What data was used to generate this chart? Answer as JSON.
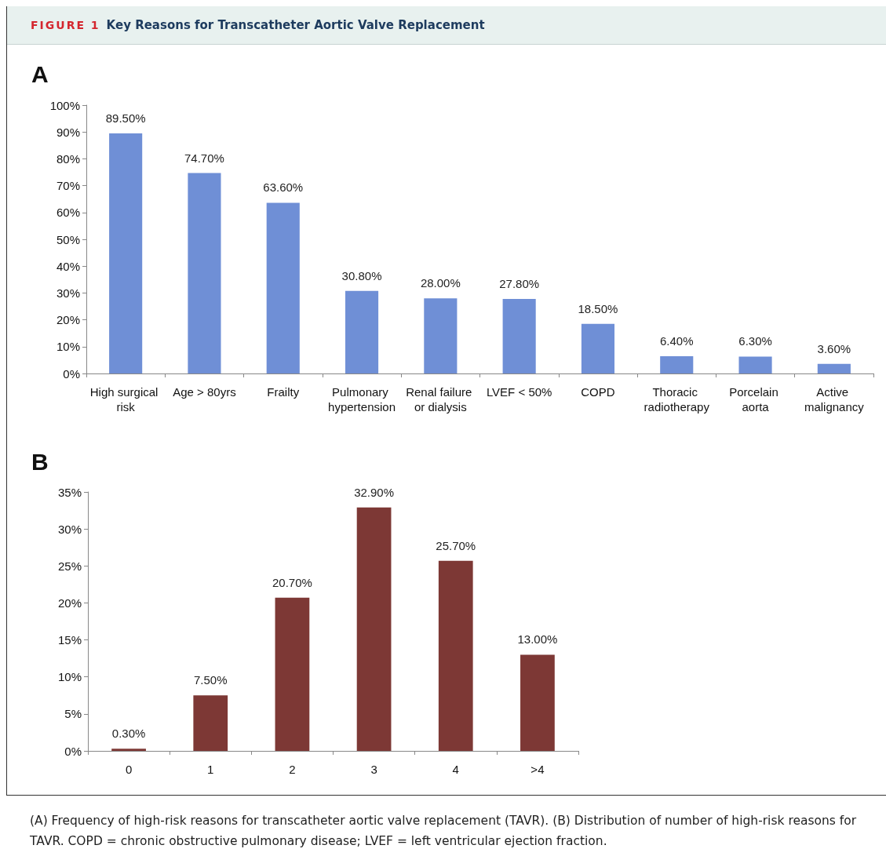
{
  "chart_data": [
    {
      "type": "bar",
      "title": "A",
      "annotations": [
        "FIGURE 1",
        "Key Reasons for Transcatheter Aortic Valve Replacement"
      ],
      "categories": [
        "High surgical risk",
        "Age > 80yrs",
        "Frailty",
        "Pulmonary hypertension",
        "Renal failure or dialysis",
        "LVEF < 50%",
        "COPD",
        "Thoracic radiotherapy",
        "Porcelain aorta",
        "Active malignancy"
      ],
      "values": [
        89.5,
        74.7,
        63.6,
        30.8,
        28.0,
        27.8,
        18.5,
        6.4,
        6.3,
        3.6
      ],
      "value_labels": [
        "89.50%",
        "74.70%",
        "63.60%",
        "30.80%",
        "28.00%",
        "27.80%",
        "18.50%",
        "6.40%",
        "6.30%",
        "3.60%"
      ],
      "color": "#6f8fd6",
      "ylim": [
        0,
        100
      ],
      "yticks": [
        {
          "value": 0,
          "label": "0%"
        },
        {
          "value": 10,
          "label": "10%"
        },
        {
          "value": 20,
          "label": "20%"
        },
        {
          "value": 30,
          "label": "30%"
        },
        {
          "value": 40,
          "label": "40%"
        },
        {
          "value": 50,
          "label": "50%"
        },
        {
          "value": 60,
          "label": "60%"
        },
        {
          "value": 70,
          "label": "70%"
        },
        {
          "value": 80,
          "label": "80%"
        },
        {
          "value": 90,
          "label": "90%"
        },
        {
          "value": 100,
          "label": "100%"
        }
      ],
      "grid": false
    },
    {
      "type": "bar",
      "title": "B",
      "annotations": [
        "(A) Frequency of high-risk reasons for transcatheter aortic valve replacement (TAVR). (B) Distribution of number of high-risk reasons for TAVR. COPD = chronic obstructive pulmonary disease; LVEF = left ventricular ejection fraction."
      ],
      "categories": [
        "0",
        "1",
        "2",
        "3",
        "4",
        ">4"
      ],
      "values": [
        0.3,
        7.5,
        20.7,
        32.9,
        25.7,
        13.0
      ],
      "value_labels": [
        "0.30%",
        "7.50%",
        "20.70%",
        "32.90%",
        "25.70%",
        "13.00%"
      ],
      "color": "#7d3835",
      "ylim": [
        0,
        35
      ],
      "yticks": [
        {
          "value": 0,
          "label": "0%"
        },
        {
          "value": 5,
          "label": "5%"
        },
        {
          "value": 10,
          "label": "10%"
        },
        {
          "value": 15,
          "label": "15%"
        },
        {
          "value": 20,
          "label": "20%"
        },
        {
          "value": 25,
          "label": "25%"
        },
        {
          "value": 30,
          "label": "30%"
        },
        {
          "value": 35,
          "label": "35%"
        }
      ],
      "grid": false
    }
  ]
}
